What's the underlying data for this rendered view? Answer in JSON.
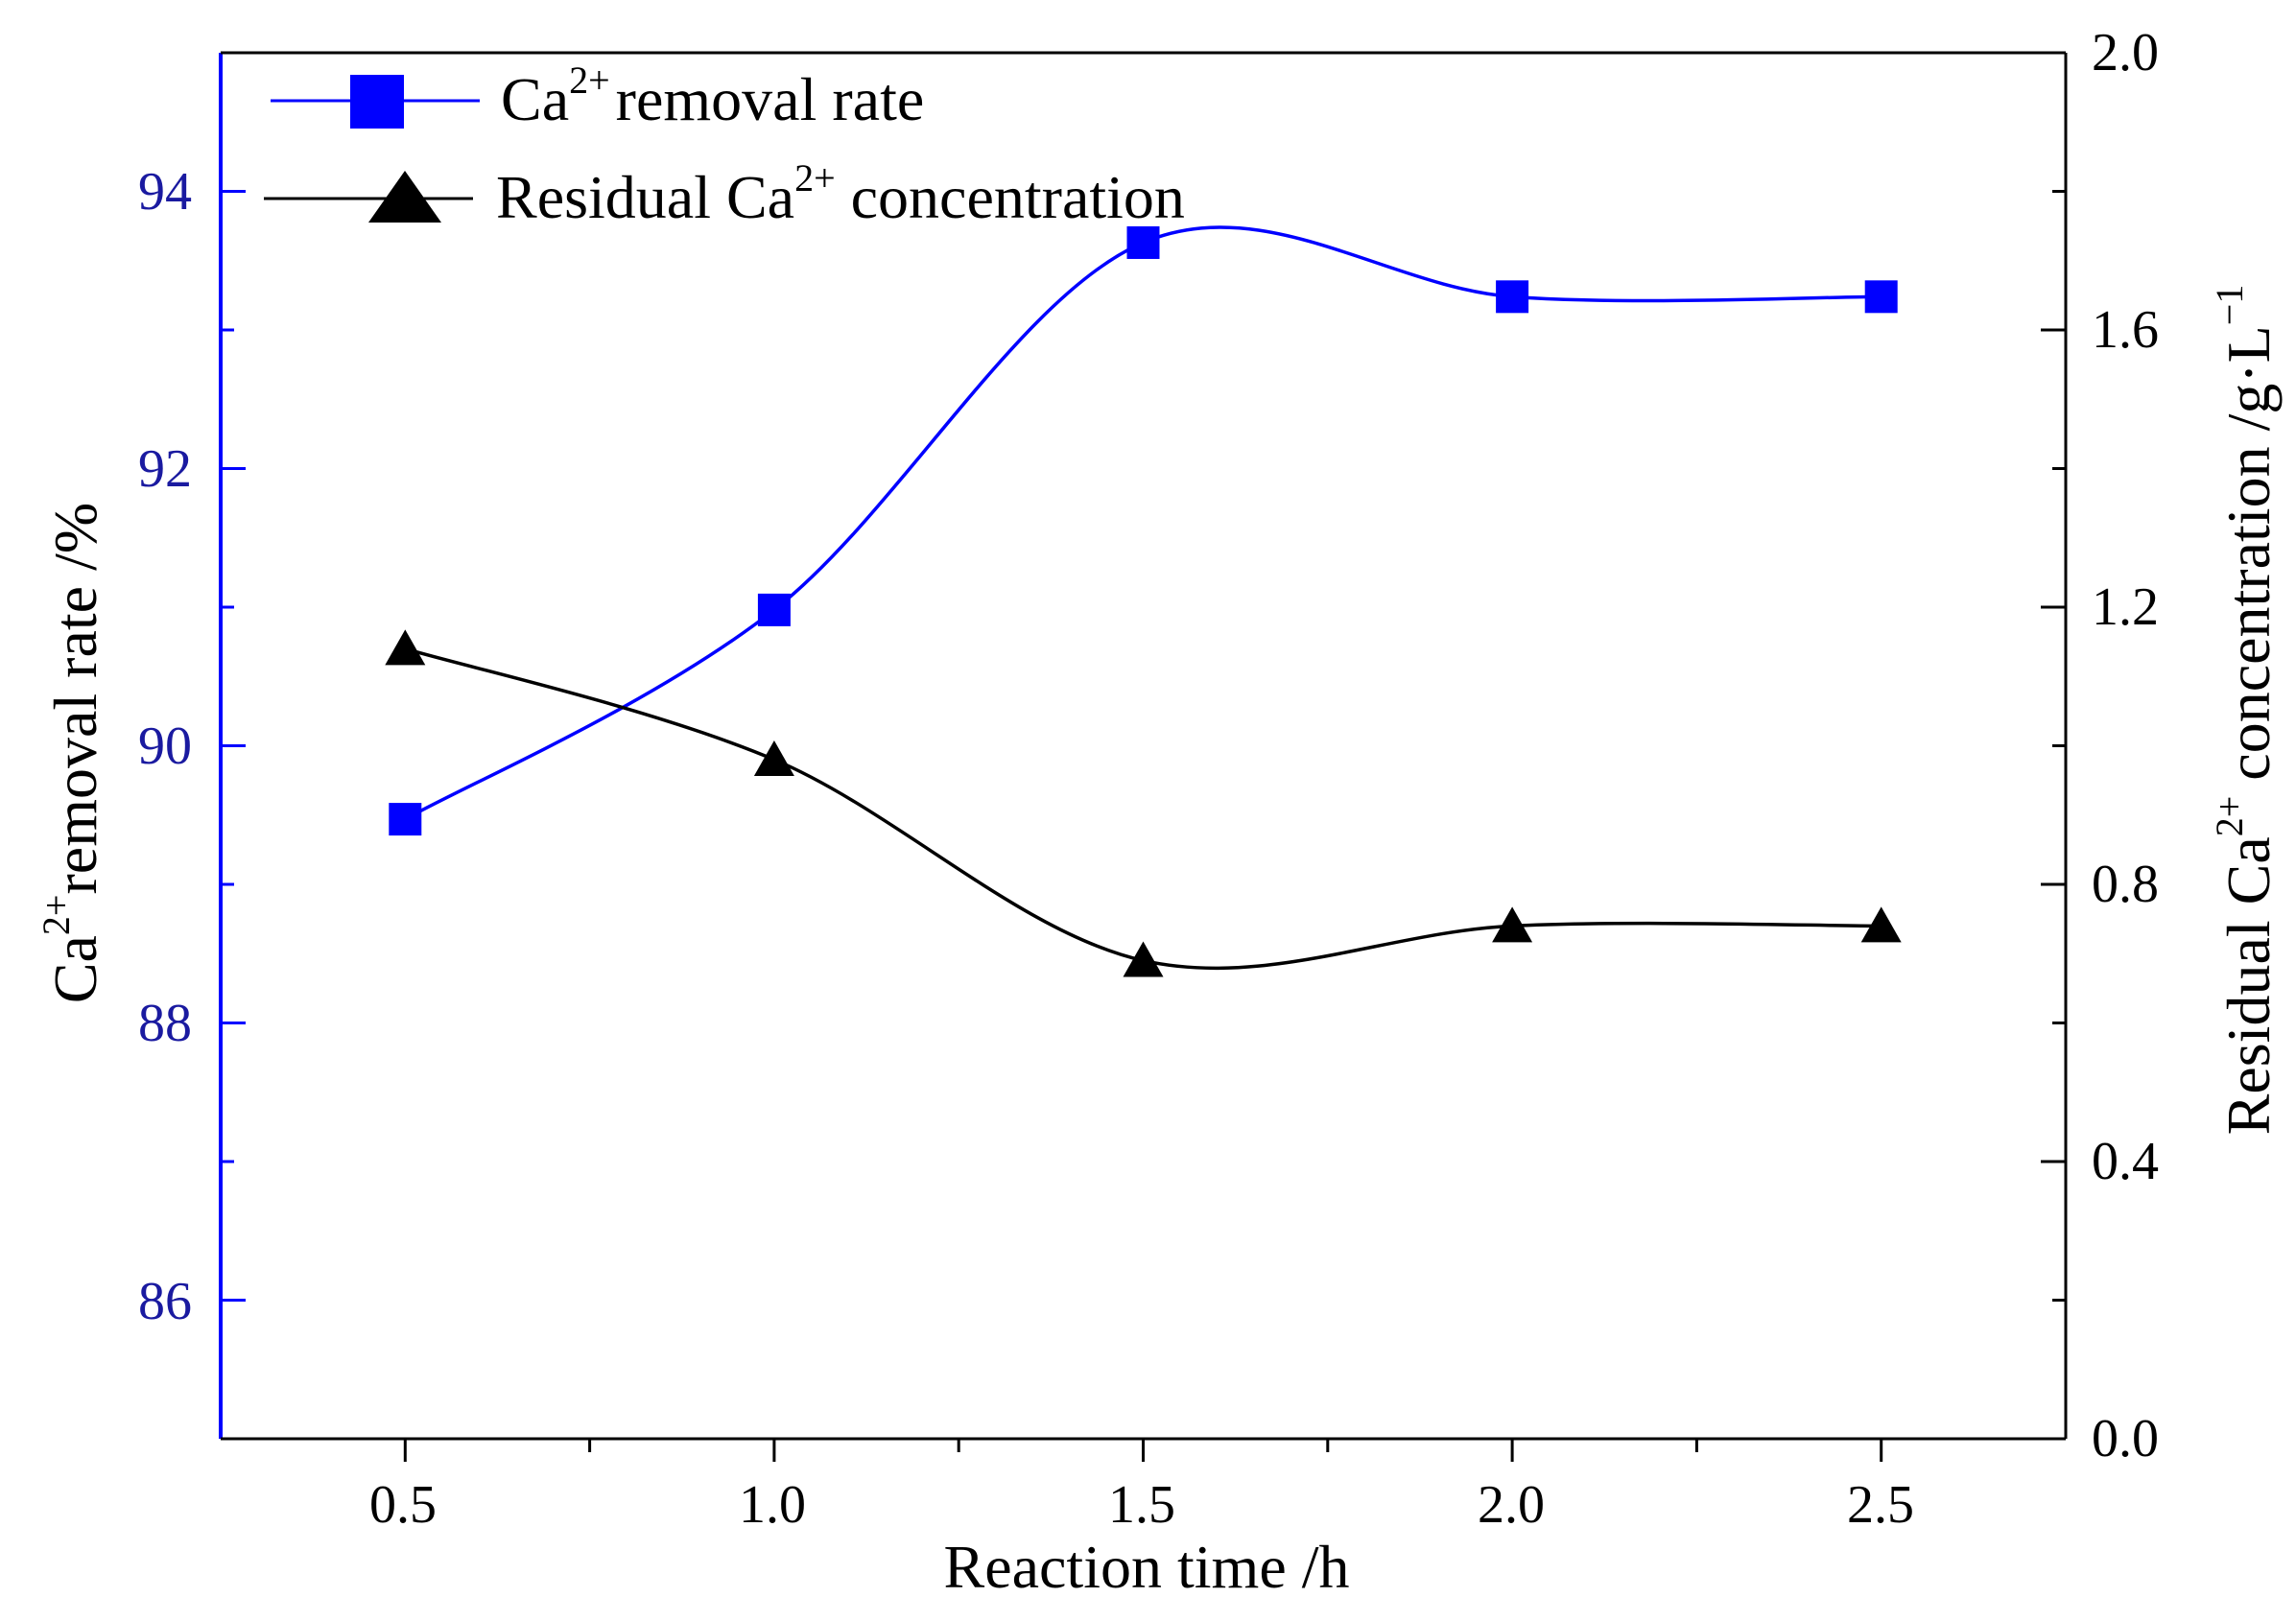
{
  "chart_data": {
    "type": "line",
    "x": [
      0.5,
      1.0,
      1.5,
      2.0,
      2.5
    ],
    "xlabel": "Reaction time /h",
    "x_tick_labels": [
      "0.5",
      "1.0",
      "1.5",
      "2.0",
      "2.5"
    ],
    "xlim": [
      0.25,
      2.75
    ],
    "series": [
      {
        "name": "Ca2+ removal rate",
        "axis": "left",
        "marker": "square",
        "color": "#0000ff",
        "values": [
          89.47,
          90.98,
          93.63,
          93.24,
          93.24
        ]
      },
      {
        "name": "Residual Ca2+ concentration",
        "axis": "right",
        "marker": "triangle",
        "color": "#000000",
        "values": [
          1.14,
          0.98,
          0.69,
          0.74,
          0.74
        ]
      }
    ],
    "y_left": {
      "label_base": "Ca",
      "label_sup": "2+",
      "label_rest": "removal rate /%",
      "ylim": [
        85,
        95
      ],
      "tick_labels": [
        "86",
        "88",
        "90",
        "92",
        "94"
      ],
      "color": "#1a1aa0"
    },
    "y_right": {
      "label_pre": "Residual Ca",
      "label_sup": "2+",
      "label_mid": " concentration  /g·L",
      "label_sup2": "−1",
      "ylim": [
        0.0,
        2.0
      ],
      "tick_labels": [
        "0.0",
        "0.4",
        "0.8",
        "1.2",
        "1.6",
        "2.0"
      ]
    },
    "legend": {
      "position": "top-left",
      "entry1_base": "Ca",
      "entry1_sup": "2+",
      "entry1_rest": "removal rate",
      "entry2_pre": "Residual Ca",
      "entry2_sup": "2+",
      "entry2_rest": " concentration"
    }
  }
}
